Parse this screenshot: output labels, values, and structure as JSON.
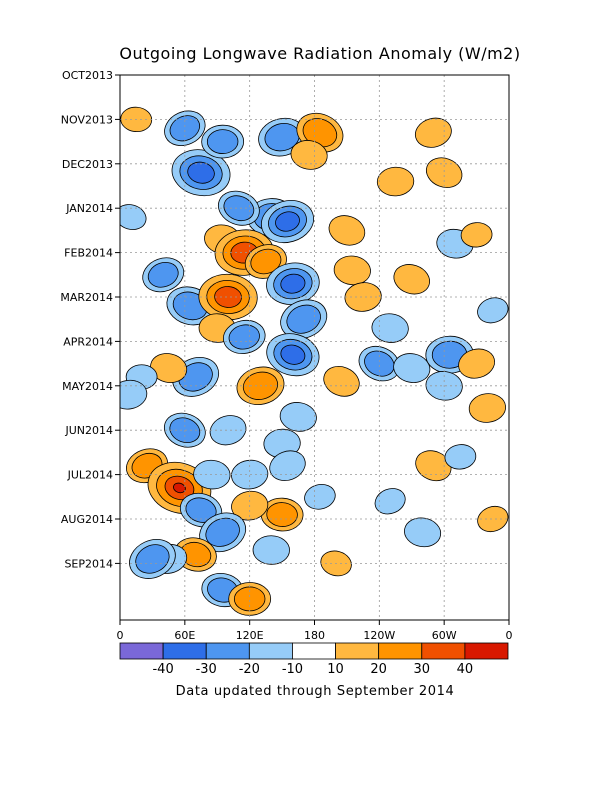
{
  "chart_data": {
    "type": "heatmap",
    "title": "Outgoing Longwave Radiation Anomaly (W/m2)",
    "footer": "Data updated through September 2014",
    "y_ticks": [
      "OCT2013",
      "NOV2013",
      "DEC2013",
      "JAN2014",
      "FEB2014",
      "MAR2014",
      "APR2014",
      "MAY2014",
      "JUN2014",
      "JUL2014",
      "AUG2014",
      "SEP2014"
    ],
    "x_ticks": [
      "0",
      "60E",
      "120E",
      "180",
      "120W",
      "60W",
      "0"
    ],
    "x_range": [
      0,
      360
    ],
    "grid": true,
    "colorbar": {
      "labels": [
        "-40",
        "-30",
        "-20",
        "-10",
        "10",
        "20",
        "30",
        "40"
      ],
      "colors": [
        "#7a68d8",
        "#2e6ee8",
        "#4e96f0",
        "#96ccf8",
        "#ffffff",
        "#ffb840",
        "#ff9400",
        "#f05000",
        "#d81800"
      ]
    },
    "features": [
      {
        "lon": 60,
        "t": 1.2,
        "v": -20
      },
      {
        "lon": 75,
        "t": 2.2,
        "v": -35
      },
      {
        "lon": 95,
        "t": 1.5,
        "v": -20
      },
      {
        "lon": 150,
        "t": 1.4,
        "v": -25
      },
      {
        "lon": 185,
        "t": 1.3,
        "v": 25
      },
      {
        "lon": 175,
        "t": 1.8,
        "v": 15
      },
      {
        "lon": 140,
        "t": 3.2,
        "v": -25
      },
      {
        "lon": 155,
        "t": 3.3,
        "v": -30
      },
      {
        "lon": 110,
        "t": 3.0,
        "v": -20
      },
      {
        "lon": 95,
        "t": 3.7,
        "v": 15
      },
      {
        "lon": 115,
        "t": 4.0,
        "v": 35
      },
      {
        "lon": 135,
        "t": 4.2,
        "v": 20
      },
      {
        "lon": 210,
        "t": 3.5,
        "v": 15
      },
      {
        "lon": 215,
        "t": 4.4,
        "v": 15
      },
      {
        "lon": 225,
        "t": 5.0,
        "v": 15
      },
      {
        "lon": 40,
        "t": 4.5,
        "v": -20
      },
      {
        "lon": 65,
        "t": 5.2,
        "v": -25
      },
      {
        "lon": 100,
        "t": 5.0,
        "v": 35
      },
      {
        "lon": 160,
        "t": 4.7,
        "v": -30
      },
      {
        "lon": 170,
        "t": 5.5,
        "v": -25
      },
      {
        "lon": 160,
        "t": 6.3,
        "v": -30
      },
      {
        "lon": 90,
        "t": 5.7,
        "v": 15
      },
      {
        "lon": 115,
        "t": 5.9,
        "v": -20
      },
      {
        "lon": 70,
        "t": 6.8,
        "v": -25
      },
      {
        "lon": 45,
        "t": 6.6,
        "v": 15
      },
      {
        "lon": 20,
        "t": 6.8,
        "v": -10
      },
      {
        "lon": 130,
        "t": 7.0,
        "v": 25
      },
      {
        "lon": 240,
        "t": 6.5,
        "v": -20
      },
      {
        "lon": 270,
        "t": 6.6,
        "v": -15
      },
      {
        "lon": 305,
        "t": 6.3,
        "v": -25
      },
      {
        "lon": 330,
        "t": 6.5,
        "v": 15
      },
      {
        "lon": 205,
        "t": 6.9,
        "v": 15
      },
      {
        "lon": 165,
        "t": 7.7,
        "v": -15
      },
      {
        "lon": 150,
        "t": 8.3,
        "v": -15
      },
      {
        "lon": 100,
        "t": 8.0,
        "v": -15
      },
      {
        "lon": 60,
        "t": 8.0,
        "v": -20
      },
      {
        "lon": 300,
        "t": 7.0,
        "v": -15
      },
      {
        "lon": 340,
        "t": 7.5,
        "v": 15
      },
      {
        "lon": 25,
        "t": 8.8,
        "v": 20
      },
      {
        "lon": 55,
        "t": 9.3,
        "v": 40
      },
      {
        "lon": 85,
        "t": 9.0,
        "v": -15
      },
      {
        "lon": 120,
        "t": 9.0,
        "v": -15
      },
      {
        "lon": 155,
        "t": 8.8,
        "v": -15
      },
      {
        "lon": 75,
        "t": 9.8,
        "v": -20
      },
      {
        "lon": 150,
        "t": 9.9,
        "v": 20
      },
      {
        "lon": 120,
        "t": 9.7,
        "v": 15
      },
      {
        "lon": 95,
        "t": 10.3,
        "v": -25
      },
      {
        "lon": 70,
        "t": 10.8,
        "v": 20
      },
      {
        "lon": 140,
        "t": 10.7,
        "v": -15
      },
      {
        "lon": 45,
        "t": 10.9,
        "v": -15
      },
      {
        "lon": 30,
        "t": 10.9,
        "v": -25
      },
      {
        "lon": 95,
        "t": 11.6,
        "v": -20
      },
      {
        "lon": 120,
        "t": 11.8,
        "v": 20
      },
      {
        "lon": 185,
        "t": 9.5,
        "v": -10
      },
      {
        "lon": 290,
        "t": 8.8,
        "v": 15
      },
      {
        "lon": 280,
        "t": 10.3,
        "v": -15
      },
      {
        "lon": 255,
        "t": 2.4,
        "v": 15
      },
      {
        "lon": 290,
        "t": 1.3,
        "v": 15
      },
      {
        "lon": 300,
        "t": 2.2,
        "v": 15
      },
      {
        "lon": 310,
        "t": 3.8,
        "v": -15
      },
      {
        "lon": 330,
        "t": 3.6,
        "v": 10
      },
      {
        "lon": 345,
        "t": 5.3,
        "v": -10
      },
      {
        "lon": 270,
        "t": 4.6,
        "v": 15
      },
      {
        "lon": 250,
        "t": 5.7,
        "v": -15
      },
      {
        "lon": 315,
        "t": 8.6,
        "v": -10
      },
      {
        "lon": 345,
        "t": 10.0,
        "v": 10
      },
      {
        "lon": 10,
        "t": 3.2,
        "v": -10
      },
      {
        "lon": 15,
        "t": 1.0,
        "v": 10
      },
      {
        "lon": 8,
        "t": 7.2,
        "v": -15
      },
      {
        "lon": 250,
        "t": 9.6,
        "v": -10
      },
      {
        "lon": 200,
        "t": 11.0,
        "v": 10
      }
    ]
  }
}
